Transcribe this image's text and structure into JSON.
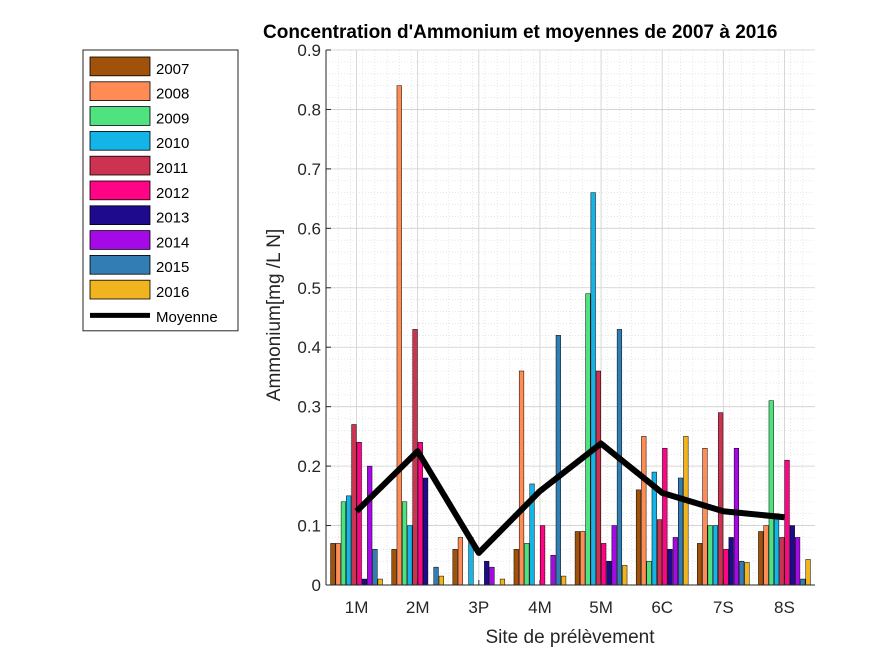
{
  "chart_data": {
    "type": "bar",
    "title": "Concentration d'Ammonium et moyennes de 2007 à 2016",
    "xlabel": "Site de prélèvement",
    "ylabel": "Ammonium[mg /L N]",
    "ylim": [
      0,
      0.9
    ],
    "yticks": [
      "0",
      "0.1",
      "0.2",
      "0.3",
      "0.4",
      "0.5",
      "0.6",
      "0.7",
      "0.8",
      "0.9"
    ],
    "grid": true,
    "legend_position": "outside-left",
    "categories": [
      "1M",
      "2M",
      "3P",
      "4M",
      "5M",
      "6C",
      "7S",
      "8S"
    ],
    "series": [
      {
        "name": "2007",
        "color": "#A0520A",
        "values": [
          0.07,
          0.06,
          0.06,
          0.06,
          0.09,
          0.16,
          0.07,
          0.09
        ]
      },
      {
        "name": "2008",
        "color": "#FF8C55",
        "values": [
          0.07,
          0.84,
          0.08,
          0.36,
          0.09,
          0.25,
          0.23,
          0.1
        ]
      },
      {
        "name": "2009",
        "color": "#4EE37E",
        "values": [
          0.14,
          0.14,
          0.0,
          0.07,
          0.49,
          0.04,
          0.1,
          0.31
        ]
      },
      {
        "name": "2010",
        "color": "#14B4E6",
        "values": [
          0.15,
          0.1,
          0.08,
          0.17,
          0.66,
          0.19,
          0.1,
          0.12
        ]
      },
      {
        "name": "2011",
        "color": "#CC3350",
        "values": [
          0.27,
          0.43,
          0.0,
          0.0,
          0.36,
          0.11,
          0.29,
          0.08
        ]
      },
      {
        "name": "2012",
        "color": "#FF0585",
        "values": [
          0.24,
          0.24,
          0.0,
          0.1,
          0.07,
          0.23,
          0.06,
          0.21
        ]
      },
      {
        "name": "2013",
        "color": "#1E0A8C",
        "values": [
          0.01,
          0.18,
          0.04,
          0.0,
          0.04,
          0.06,
          0.08,
          0.1
        ]
      },
      {
        "name": "2014",
        "color": "#A50AE6",
        "values": [
          0.2,
          0.0,
          0.03,
          0.05,
          0.1,
          0.08,
          0.23,
          0.08
        ]
      },
      {
        "name": "2015",
        "color": "#327DB4",
        "values": [
          0.06,
          0.03,
          0.0,
          0.42,
          0.43,
          0.18,
          0.04,
          0.01
        ]
      },
      {
        "name": "2016",
        "color": "#F0B41E",
        "values": [
          0.01,
          0.015,
          0.01,
          0.015,
          0.033,
          0.25,
          0.038,
          0.043
        ]
      }
    ],
    "mean_line": {
      "name": "Moyenne",
      "color": "#000000",
      "values": [
        0.124,
        0.225,
        0.054,
        0.158,
        0.238,
        0.155,
        0.124,
        0.114
      ]
    }
  }
}
